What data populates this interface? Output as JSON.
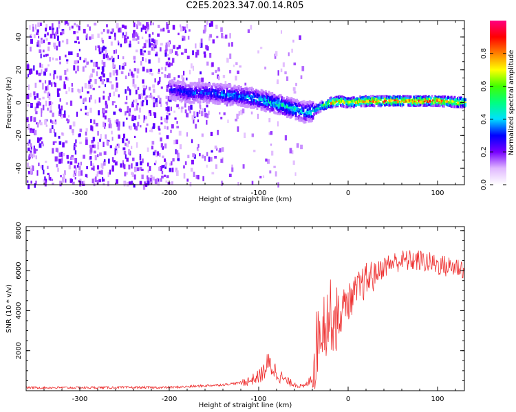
{
  "title": "C2E5.2023.347.00.14.R05",
  "chart_data": [
    {
      "type": "heatmap",
      "xlabel": "Height of straight line (km)",
      "ylabel": "Frequency (Hz)",
      "xlim": [
        -360,
        130
      ],
      "ylim": [
        -50,
        50
      ],
      "x_ticks": [
        -300,
        -200,
        -100,
        0,
        100
      ],
      "y_ticks": [
        -40,
        -20,
        0,
        20,
        40
      ],
      "colorbar": {
        "label": "Normalized spectral amplitude",
        "range": [
          0,
          1
        ],
        "ticks": [
          0.0,
          0.2,
          0.4,
          0.6,
          0.8
        ],
        "colormap": [
          "#ffffff",
          "#e0b8ff",
          "#7700ff",
          "#0000ff",
          "#00e0ff",
          "#00ff80",
          "#40ff00",
          "#ffff00",
          "#ff8000",
          "#ff0000",
          "#ff0080"
        ]
      },
      "ridge": {
        "x": [
          -200,
          -180,
          -160,
          -140,
          -120,
          -100,
          -80,
          -60,
          -50,
          -40,
          -30,
          -20,
          -10,
          0,
          20,
          40,
          60,
          80,
          100,
          130
        ],
        "y": [
          8,
          6,
          6,
          5,
          4,
          2,
          -1,
          -4,
          -6,
          -5,
          -2,
          0,
          1,
          0,
          1,
          1,
          1,
          1,
          1,
          0
        ],
        "amplitude": [
          0.3,
          0.35,
          0.35,
          0.4,
          0.4,
          0.45,
          0.5,
          0.5,
          0.45,
          0.5,
          0.6,
          0.85,
          0.9,
          0.75,
          0.95,
          0.95,
          0.95,
          0.95,
          0.9,
          0.8
        ]
      }
    },
    {
      "type": "line",
      "xlabel": "Height of straight line (km)",
      "ylabel": "SNR (10 * v/v)",
      "xlim": [
        -360,
        130
      ],
      "ylim": [
        0,
        8200
      ],
      "x_ticks": [
        -300,
        -200,
        -100,
        0,
        100
      ],
      "y_ticks": [
        2000,
        4000,
        6000,
        8000
      ],
      "color": "#ee3030",
      "series": [
        {
          "x": [
            -360,
            -300,
            -250,
            -200,
            -180,
            -160,
            -140,
            -120,
            -110,
            -100,
            -95,
            -90,
            -85,
            -80,
            -75,
            -70,
            -65,
            -60,
            -55,
            -50,
            -45,
            -40,
            -35,
            -30,
            -25,
            -20,
            -15,
            -10,
            -5,
            0,
            10,
            20,
            30,
            40,
            50,
            60,
            70,
            80,
            90,
            100,
            110,
            120,
            130
          ],
          "values": [
            150,
            150,
            160,
            160,
            200,
            250,
            300,
            400,
            500,
            700,
            900,
            1300,
            1200,
            900,
            700,
            500,
            400,
            350,
            250,
            200,
            350,
            800,
            2400,
            3400,
            3500,
            3800,
            3600,
            3400,
            4300,
            4400,
            5000,
            5500,
            5800,
            6200,
            6400,
            6500,
            6500,
            6500,
            6400,
            6300,
            6200,
            6200,
            6100
          ]
        }
      ]
    }
  ]
}
